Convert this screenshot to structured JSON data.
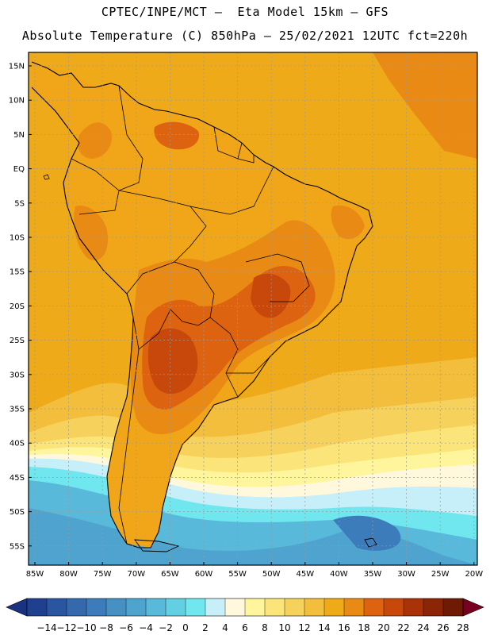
{
  "header": {
    "line1": "CPTEC/INPE/MCT –  Eta Model 15km – GFS",
    "line2": "Absolute Temperature (C) 850hPa – 25/02/2021 12UTC fct=220h"
  },
  "map": {
    "region": "South America",
    "lat_labels": [
      "15N",
      "10N",
      "5N",
      "EQ",
      "5S",
      "10S",
      "15S",
      "20S",
      "25S",
      "30S",
      "35S",
      "40S",
      "45S",
      "50S",
      "55S"
    ],
    "lon_labels": [
      "85W",
      "80W",
      "75W",
      "70W",
      "65W",
      "60W",
      "55W",
      "50W",
      "45W",
      "40W",
      "35W",
      "30W",
      "25W",
      "20W"
    ]
  },
  "colorbar": {
    "labels": [
      "-14",
      "-12",
      "-10",
      "-8",
      "-6",
      "-4",
      "-2",
      "0",
      "2",
      "4",
      "6",
      "8",
      "10",
      "12",
      "14",
      "16",
      "18",
      "20",
      "22",
      "24",
      "26",
      "28"
    ],
    "colors": [
      "#1f3f8f",
      "#2a55a0",
      "#3469ad",
      "#3d7cba",
      "#4690c4",
      "#4ea4cf",
      "#58b9da",
      "#63cfe3",
      "#70e6ee",
      "#c7eff9",
      "#fff8dc",
      "#fff59c",
      "#fbe57a",
      "#f6d25c",
      "#f2be3c",
      "#efaa19",
      "#e98a14",
      "#dd6310",
      "#c8480c",
      "#a93208",
      "#8c2406",
      "#6e1a05"
    ],
    "under_color": "#1a3380",
    "over_color": "#7a0020"
  },
  "palette": {
    "ocean_warm": "#efaa19",
    "land_warm": "#f0a618",
    "hot1": "#e98a14",
    "hot2": "#dd6310",
    "hot3": "#c8480c",
    "mild1": "#f2be3c",
    "mild2": "#f6d25c",
    "mild3": "#fbe57a",
    "pale": "#fff59c",
    "cream": "#fff8dc",
    "cold1": "#c7eff9",
    "cold2": "#70e6ee",
    "cold3": "#58b9da",
    "cold4": "#4ea4cf",
    "cold5": "#3d7cba"
  }
}
